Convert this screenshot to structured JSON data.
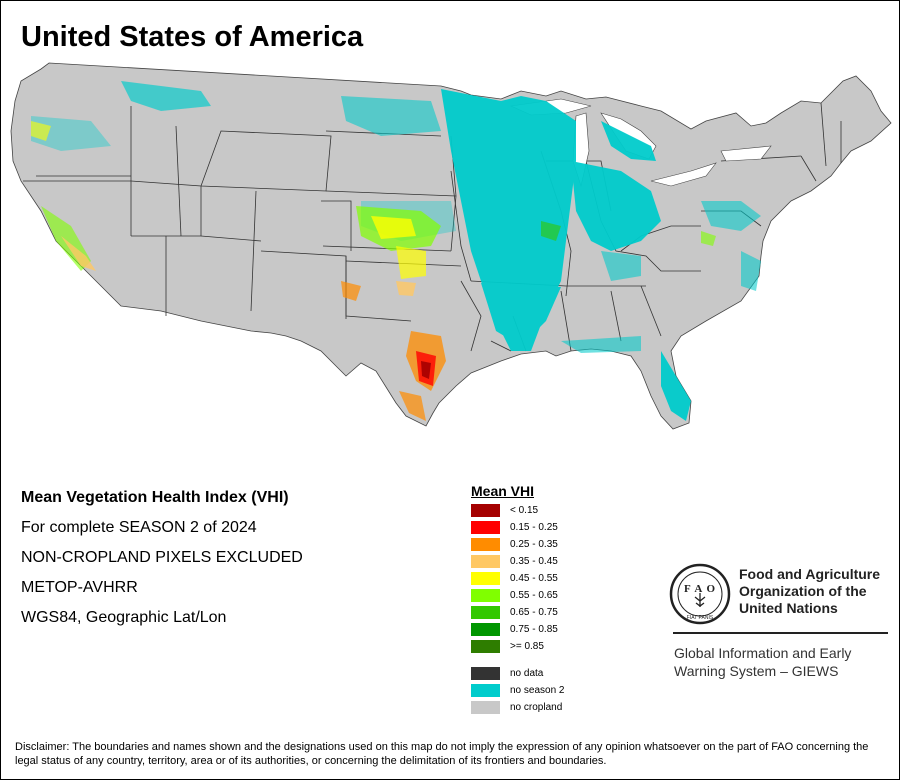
{
  "title": "United States of America",
  "info_lines": [
    "Mean Vegetation Health Index (VHI)",
    "For complete SEASON 2 of 2024",
    "NON-CROPLAND PIXELS EXCLUDED",
    "METOP-AVHRR",
    "WGS84, Geographic Lat/Lon"
  ],
  "legend": {
    "title": "Mean VHI",
    "items": [
      {
        "label": "< 0.15",
        "color": "#a50000"
      },
      {
        "label": "0.15 - 0.25",
        "color": "#ff0000"
      },
      {
        "label": "0.25 - 0.35",
        "color": "#ff8c00"
      },
      {
        "label": "0.35 - 0.45",
        "color": "#ffc864"
      },
      {
        "label": "0.45 - 0.55",
        "color": "#ffff00"
      },
      {
        "label": "0.55 - 0.65",
        "color": "#80ff00"
      },
      {
        "label": "0.65 - 0.75",
        "color": "#32c800"
      },
      {
        "label": "0.75 - 0.85",
        "color": "#009600"
      },
      {
        "label": ">= 0.85",
        "color": "#2e7d00"
      },
      {
        "label": "no data",
        "color": "#333333"
      },
      {
        "label": "no season 2",
        "color": "#00cccc"
      },
      {
        "label": "no cropland",
        "color": "#c8c8c8"
      }
    ]
  },
  "organization": {
    "logo_text": "FAO",
    "logo_motto": "FIAT PANIS",
    "name_lines": [
      "Food and Agriculture",
      "Organization of the",
      "United Nations"
    ],
    "program_lines": [
      "Global Information and Early",
      "Warning System – GIEWS"
    ]
  },
  "disclaimer": "Disclaimer: The boundaries and names shown and the designations used on this map do not imply the expression of any opinion whatsoever on the part of FAO concerning the legal status of any country, territory, area or of its authorities, or concerning the delimitation of its frontiers and boundaries.",
  "colors": {
    "land": "#c8c8c8",
    "no_season": "#00cccc",
    "borders": "#333333"
  }
}
